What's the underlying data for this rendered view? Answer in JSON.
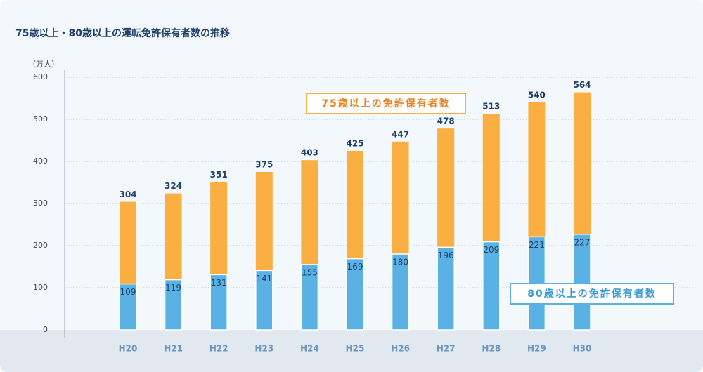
{
  "chart_data": {
    "type": "bar",
    "title": "75歳以上・80歳以上の運転免許保有者数の推移",
    "y_unit": "（万人）",
    "categories": [
      "H20",
      "H21",
      "H22",
      "H23",
      "H24",
      "H25",
      "H26",
      "H27",
      "H28",
      "H29",
      "H30"
    ],
    "series": [
      {
        "name": "75歳以上の免許保有者数",
        "color": "#fbae42",
        "values": [
          304,
          324,
          351,
          375,
          403,
          425,
          447,
          478,
          513,
          540,
          564
        ]
      },
      {
        "name": "80歳以上の免許保有者数",
        "color": "#5ab1e3",
        "values": [
          109,
          119,
          131,
          141,
          155,
          169,
          180,
          196,
          209,
          221,
          227
        ]
      }
    ],
    "ylim": [
      0,
      600
    ],
    "yticks": [
      0,
      100,
      200,
      300,
      400,
      500,
      600
    ],
    "grid": true
  }
}
